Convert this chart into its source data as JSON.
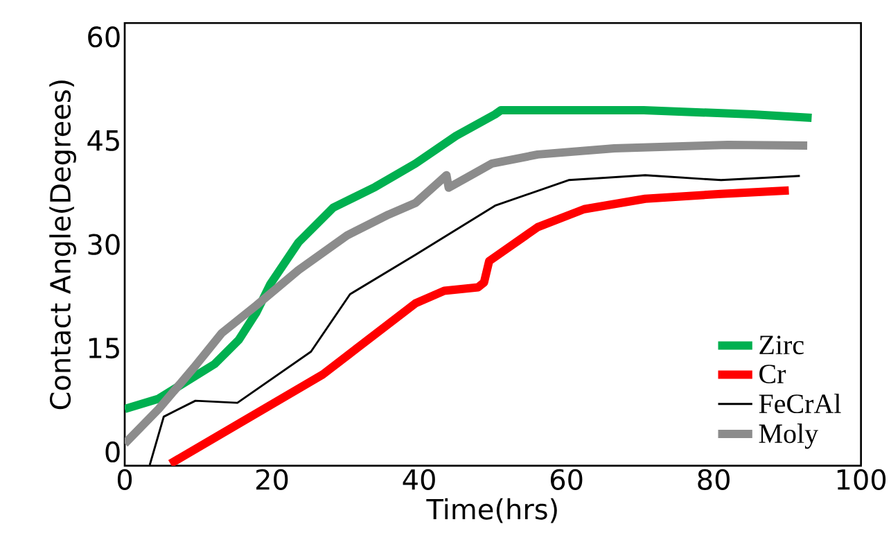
{
  "chart_data": {
    "type": "line",
    "xlabel": "Time(hrs)",
    "ylabel": "Contact Angle(Degrees)",
    "xlim": [
      0,
      100
    ],
    "xticks": [
      0,
      20,
      40,
      60,
      80,
      100
    ],
    "ylim": [
      -2,
      62
    ],
    "yticks": [
      0,
      15,
      30,
      45,
      60
    ],
    "grid": false,
    "legend": "bottom right",
    "marker": "none",
    "line_style": "solid",
    "series": [
      {
        "name": "Zirc",
        "color": "#00b050",
        "x": [
          0,
          4.6,
          8.4,
          12.2,
          15.5,
          17.9,
          19.8,
          23.6,
          28.3,
          34,
          39.5,
          45,
          50.3,
          51.1,
          70.5,
          85.3,
          93.3
        ],
        "values": [
          6.2,
          7.7,
          10.2,
          12.7,
          16.2,
          20.2,
          24.3,
          30.3,
          35.3,
          38.3,
          41.7,
          45.7,
          48.8,
          49.4,
          49.4,
          48.8,
          48.3
        ]
      },
      {
        "name": "Cr",
        "color": "#ff0000",
        "x": [
          6.2,
          26.9,
          39.5,
          43.4,
          48,
          48.8,
          49.5,
          56.1,
          62.4,
          70.7,
          81,
          90.2
        ],
        "values": [
          -1.7,
          11.2,
          21.5,
          23.3,
          23.8,
          24.5,
          27.6,
          32.5,
          35.1,
          36.6,
          37.3,
          37.8
        ]
      },
      {
        "name": "FeCrAl",
        "color": "#000000",
        "x": [
          3.4,
          5.3,
          9.6,
          15.3,
          25.3,
          30.6,
          39.5,
          50.3,
          60.3,
          70.7,
          81,
          91.7
        ],
        "values": [
          -1.9,
          5.1,
          7.4,
          7.1,
          14.5,
          22.8,
          28.5,
          35.6,
          39.3,
          40,
          39.3,
          39.9
        ]
      },
      {
        "name": "Moly",
        "color": "#8c8c8c",
        "x": [
          0,
          4.6,
          9.4,
          13.2,
          17.9,
          23.6,
          30.2,
          35.8,
          39.5,
          43.7,
          44,
          49.9,
          56.1,
          66.5,
          81.9,
          92.7
        ],
        "values": [
          1.2,
          6.2,
          12.2,
          17.2,
          21.2,
          26.3,
          31.3,
          34.3,
          36,
          40,
          38.2,
          41.7,
          43,
          43.9,
          44.4,
          44.3
        ]
      }
    ]
  }
}
